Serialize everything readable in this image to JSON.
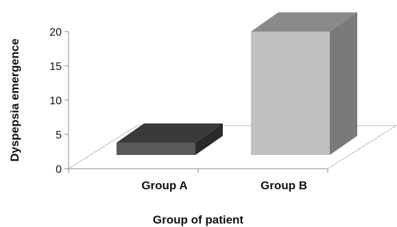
{
  "chart_data": {
    "type": "bar",
    "categories": [
      "Group A",
      "Group B"
    ],
    "values": [
      2,
      20
    ],
    "xlabel": "Group of patient",
    "ylabel": "Dyspepsia emergence",
    "ylim": [
      0,
      20
    ],
    "yticks": [
      0,
      5,
      10,
      15,
      20
    ],
    "grid": false,
    "legend": "none",
    "colors": {
      "group-a": {
        "front": "#5a5a5a",
        "top": "#3a3a3a",
        "side": "#2a2a2a"
      },
      "group-b": {
        "front": "#c0c0c0",
        "top": "#8a8a8a",
        "side": "#7a7a7a"
      }
    }
  }
}
